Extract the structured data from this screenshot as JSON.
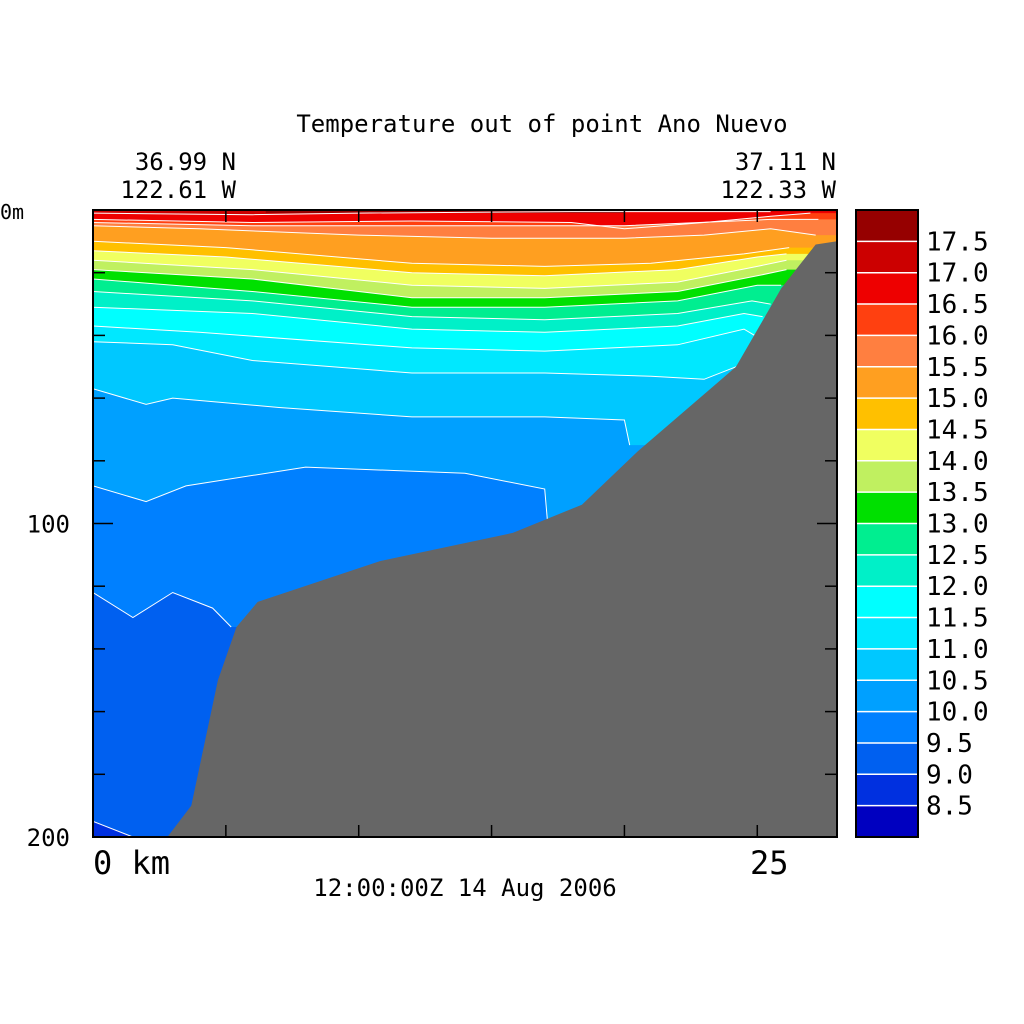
{
  "chart_data": {
    "type": "heatmap",
    "title": "Temperature out of point Ano Nuevo",
    "timestamp": "12:00:00Z  14 Aug 2006",
    "start_position": {
      "lat": "36.99 N",
      "lon": "122.61 W"
    },
    "end_position": {
      "lat": "37.11 N",
      "lon": "122.33 W"
    },
    "xlabel": "km",
    "ylabel": "m",
    "xlim": [
      0,
      28
    ],
    "ylim": [
      200,
      0
    ],
    "x_tick_labels": [
      {
        "value": 0,
        "label": "0 km"
      },
      {
        "value": 25,
        "label": "25"
      }
    ],
    "y_tick_labels": [
      {
        "value": 0,
        "label": "0m"
      },
      {
        "value": 100,
        "label": "100"
      },
      {
        "value": 200,
        "label": "200"
      }
    ],
    "x_ticks": [
      0,
      5,
      10,
      15,
      20,
      25
    ],
    "y_ticks": [
      0,
      20,
      40,
      60,
      80,
      100,
      120,
      140,
      160,
      180,
      200
    ],
    "colorbar": {
      "labels": [
        "17.5",
        "17.0",
        "16.5",
        "16.0",
        "15.5",
        "15.0",
        "14.5",
        "14.0",
        "13.5",
        "13.0",
        "12.5",
        "12.0",
        "11.5",
        "11.0",
        "10.5",
        "10.0",
        "9.5",
        "9.0",
        "8.5"
      ],
      "colors": [
        "#960000",
        "#cc0000",
        "#ee0000",
        "#ff4010",
        "#ff7f40",
        "#ff9f20",
        "#ffc000",
        "#f0ff60",
        "#c0f060",
        "#00e000",
        "#00ee90",
        "#00f0c8",
        "#00ffff",
        "#00e8ff",
        "#00c8ff",
        "#00a0ff",
        "#0080ff",
        "#0060f0",
        "#0030e0",
        "#0000c0"
      ]
    },
    "bathymetry_color": "#666666",
    "bathymetry": [
      [
        2.8,
        200
      ],
      [
        3.7,
        190
      ],
      [
        4.7,
        150
      ],
      [
        5.4,
        133
      ],
      [
        6.2,
        125
      ],
      [
        10.8,
        112
      ],
      [
        15.8,
        103
      ],
      [
        18.4,
        94
      ],
      [
        20.5,
        77
      ],
      [
        24.2,
        50
      ],
      [
        25.9,
        25
      ],
      [
        27.2,
        11
      ],
      [
        28,
        10
      ]
    ],
    "isotherms": [
      {
        "value": 17.5,
        "color": "#960000",
        "points": [
          [
            6.5,
            0
          ],
          [
            10,
            0
          ],
          [
            20,
            0
          ],
          [
            25.5,
            0
          ]
        ]
      },
      {
        "value": 17.0,
        "color": "#cc0000",
        "points": [
          [
            0,
            1
          ],
          [
            6,
            1.5
          ],
          [
            10,
            1
          ],
          [
            18,
            0.5
          ],
          [
            25.5,
            0.5
          ]
        ]
      },
      {
        "value": 16.5,
        "color": "#ee0000",
        "points": [
          [
            0,
            3
          ],
          [
            6,
            4
          ],
          [
            12,
            3.5
          ],
          [
            18,
            4
          ],
          [
            20,
            6
          ],
          [
            23,
            4
          ],
          [
            25.5,
            2
          ],
          [
            27,
            1
          ]
        ]
      },
      {
        "value": 16.0,
        "color": "#ff4010",
        "points": [
          [
            0,
            4
          ],
          [
            6,
            5
          ],
          [
            12,
            5
          ],
          [
            20,
            5
          ],
          [
            25.5,
            3
          ],
          [
            27.3,
            3
          ]
        ]
      },
      {
        "value": 15.5,
        "color": "#ff7f40",
        "points": [
          [
            0,
            5
          ],
          [
            4,
            6
          ],
          [
            10,
            8
          ],
          [
            15,
            9
          ],
          [
            20,
            9
          ],
          [
            23,
            8
          ],
          [
            25.5,
            6
          ],
          [
            27.2,
            8
          ]
        ]
      },
      {
        "value": 15.0,
        "color": "#ff9f20",
        "points": [
          [
            0,
            10
          ],
          [
            5,
            12
          ],
          [
            12,
            17
          ],
          [
            17,
            18
          ],
          [
            21,
            17
          ],
          [
            24.5,
            14
          ],
          [
            26.2,
            12
          ]
        ]
      },
      {
        "value": 14.5,
        "color": "#ffc000",
        "points": [
          [
            0,
            13
          ],
          [
            5,
            15
          ],
          [
            12,
            20
          ],
          [
            17,
            21
          ],
          [
            22,
            19
          ],
          [
            25,
            15
          ],
          [
            26.1,
            14
          ]
        ]
      },
      {
        "value": 14.0,
        "color": "#f0ff60",
        "points": [
          [
            0,
            16
          ],
          [
            6,
            19
          ],
          [
            12,
            24
          ],
          [
            17,
            25
          ],
          [
            22,
            23
          ],
          [
            25,
            18
          ],
          [
            26.1,
            16
          ]
        ]
      },
      {
        "value": 13.5,
        "color": "#c0f060",
        "points": [
          [
            0,
            19
          ],
          [
            6,
            22
          ],
          [
            12,
            28
          ],
          [
            17,
            28
          ],
          [
            22,
            26
          ],
          [
            25,
            21
          ],
          [
            26.1,
            19
          ]
        ]
      },
      {
        "value": 13.0,
        "color": "#00e000",
        "points": [
          [
            0,
            22
          ],
          [
            6,
            26
          ],
          [
            12,
            31
          ],
          [
            17,
            31
          ],
          [
            22,
            29
          ],
          [
            25,
            24
          ],
          [
            25.9,
            24
          ]
        ]
      },
      {
        "value": 12.5,
        "color": "#00ee90",
        "points": [
          [
            0,
            26
          ],
          [
            6,
            29
          ],
          [
            12,
            34
          ],
          [
            17,
            35
          ],
          [
            22,
            33
          ],
          [
            24.8,
            29
          ],
          [
            25.5,
            30
          ]
        ]
      },
      {
        "value": 12.0,
        "color": "#00f0c8",
        "points": [
          [
            0,
            31
          ],
          [
            6,
            33
          ],
          [
            12,
            38
          ],
          [
            17,
            39
          ],
          [
            22,
            37
          ],
          [
            24.5,
            33
          ],
          [
            25.2,
            34
          ]
        ]
      },
      {
        "value": 11.5,
        "color": "#00ffff",
        "points": [
          [
            0,
            37
          ],
          [
            4,
            39
          ],
          [
            12,
            44
          ],
          [
            17,
            45
          ],
          [
            22,
            43
          ],
          [
            24.5,
            38
          ],
          [
            24.9,
            40
          ]
        ]
      },
      {
        "value": 11.0,
        "color": "#00e8ff",
        "points": [
          [
            0,
            42
          ],
          [
            3,
            43
          ],
          [
            6,
            48
          ],
          [
            12,
            52
          ],
          [
            17,
            52
          ],
          [
            21,
            53
          ],
          [
            23,
            54
          ],
          [
            24.2,
            50
          ]
        ]
      },
      {
        "value": 10.5,
        "color": "#00c8ff",
        "points": [
          [
            0,
            57
          ],
          [
            2,
            62
          ],
          [
            3,
            60
          ],
          [
            7,
            63
          ],
          [
            12,
            66
          ],
          [
            17,
            66
          ],
          [
            20,
            67
          ],
          [
            20.2,
            75
          ]
        ]
      },
      {
        "value": 10.0,
        "color": "#00a0ff",
        "points": [
          [
            0,
            88
          ],
          [
            2,
            93
          ],
          [
            3.5,
            88
          ],
          [
            8,
            82
          ],
          [
            14,
            84
          ],
          [
            17,
            89
          ],
          [
            17.1,
            99
          ]
        ]
      },
      {
        "value": 9.5,
        "color": "#0080ff",
        "points": [
          [
            0,
            122
          ],
          [
            1.5,
            130
          ],
          [
            3,
            122
          ],
          [
            4.5,
            127
          ],
          [
            5.2,
            133
          ]
        ]
      },
      {
        "value": 9.0,
        "color": "#0060f0",
        "points": [
          [
            0,
            195
          ],
          [
            1.5,
            200
          ]
        ]
      }
    ]
  }
}
